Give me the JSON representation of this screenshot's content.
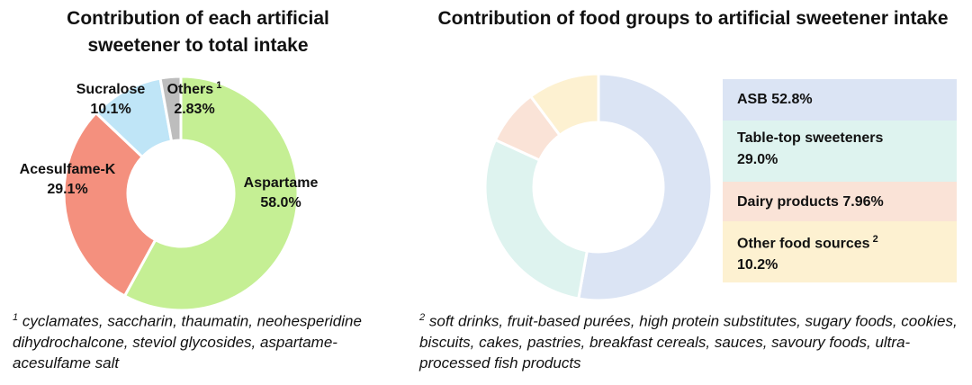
{
  "chart_data": [
    {
      "type": "pie",
      "title": "Contribution of each artificial sweetener to total intake",
      "slices": [
        {
          "label": "Aspartame",
          "value": 58.0,
          "value_text": "58.0%",
          "color": "#c5ef94"
        },
        {
          "label": "Acesulfame-K",
          "value": 29.1,
          "value_text": "29.1%",
          "color": "#f4907e"
        },
        {
          "label": "Sucralose",
          "value": 10.1,
          "value_text": "10.1%",
          "color": "#bfe5f7"
        },
        {
          "label": "Others",
          "sup": "1",
          "value": 2.83,
          "value_text": "2.83%",
          "color": "#bdbdbd"
        }
      ],
      "footnote": {
        "mark": "1",
        "text": "cyclamates, saccharin, thaumatin, neohesperidine dihydrochalcone, steviol glycosides, aspartame-acesulfame salt"
      }
    },
    {
      "type": "pie",
      "title": "Contribution of food groups to artificial sweetener intake",
      "slices": [
        {
          "label": "ASB",
          "value": 52.8,
          "value_text": "52.8%",
          "color": "#dbe4f4"
        },
        {
          "label": "Table-top sweeteners",
          "value": 29.0,
          "value_text": "29.0%",
          "color": "#def3ef"
        },
        {
          "label": "Dairy products",
          "value": 7.96,
          "value_text": "7.96%",
          "color": "#fae3d7"
        },
        {
          "label": "Other food sources",
          "sup": "2",
          "value": 10.2,
          "value_text": "10.2%",
          "color": "#fdf1d1"
        }
      ],
      "legend_position": "right",
      "footnote": {
        "mark": "2",
        "text": "soft drinks, fruit-based purées, high protein substitutes, sugary foods, cookies, biscuits, cakes, pastries, breakfast cereals, sauces, savoury foods, ultra-processed fish products"
      }
    }
  ]
}
